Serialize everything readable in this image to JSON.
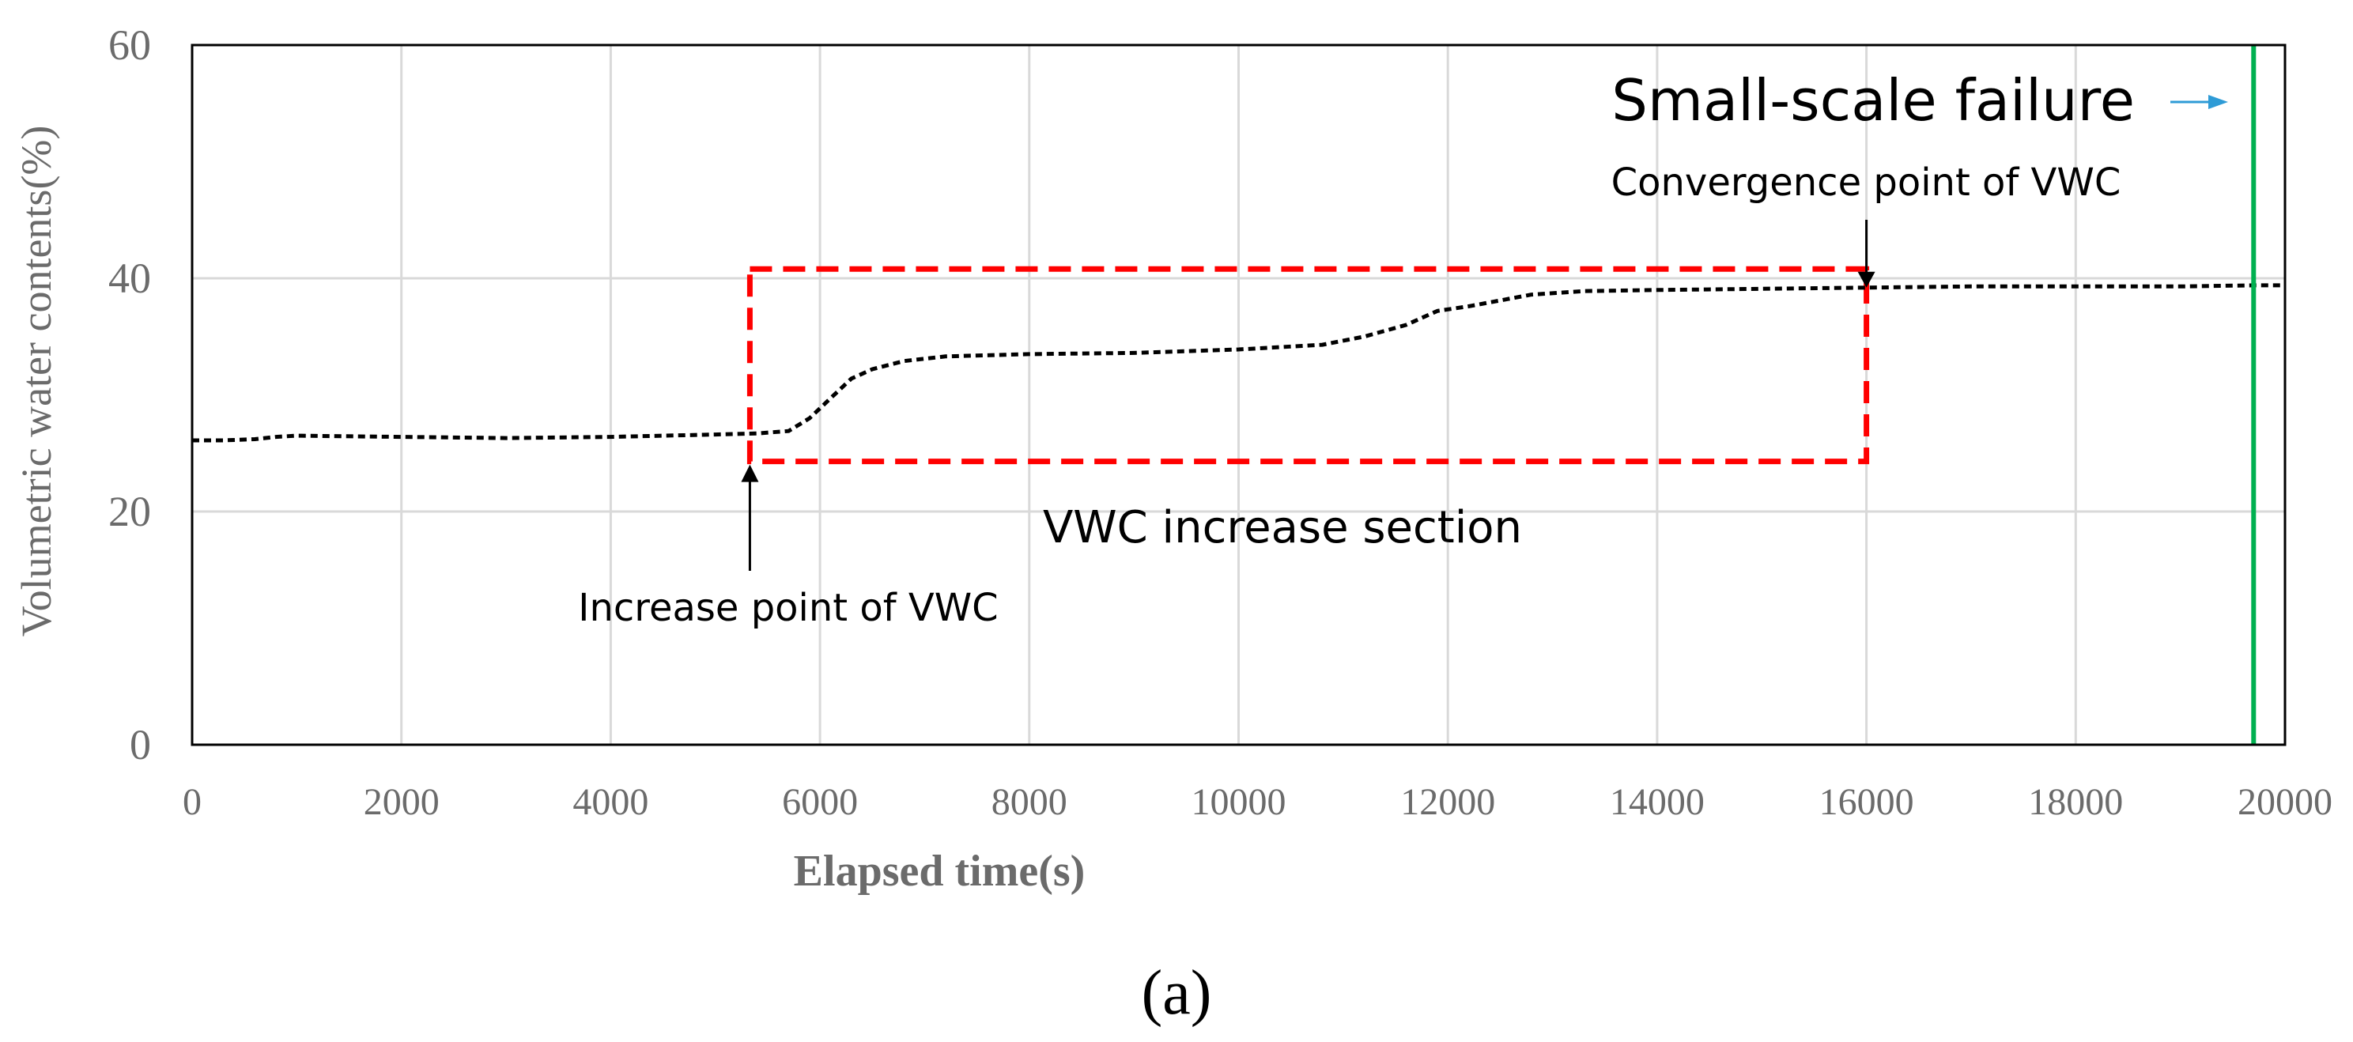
{
  "chart_data": {
    "type": "line",
    "title": "",
    "xlabel": "Elapsed time(s)",
    "ylabel": "Volumetric  water contents(%)",
    "xlim": [
      0,
      20000
    ],
    "ylim": [
      0,
      60
    ],
    "x_ticks": [
      0,
      2000,
      4000,
      6000,
      8000,
      10000,
      12000,
      14000,
      16000,
      18000,
      20000
    ],
    "y_ticks": [
      0,
      20,
      40,
      60
    ],
    "grid": true,
    "series": [
      {
        "name": "VWC",
        "style": "dashed",
        "color": "#000000",
        "points": [
          [
            0,
            26.1
          ],
          [
            300,
            26.1
          ],
          [
            600,
            26.2
          ],
          [
            800,
            26.4
          ],
          [
            1000,
            26.5
          ],
          [
            2000,
            26.4
          ],
          [
            3000,
            26.3
          ],
          [
            4000,
            26.4
          ],
          [
            5000,
            26.6
          ],
          [
            5400,
            26.7
          ],
          [
            5700,
            26.9
          ],
          [
            5900,
            28.0
          ],
          [
            6100,
            29.7
          ],
          [
            6300,
            31.4
          ],
          [
            6500,
            32.2
          ],
          [
            6800,
            32.9
          ],
          [
            7200,
            33.3
          ],
          [
            8000,
            33.5
          ],
          [
            9000,
            33.6
          ],
          [
            10000,
            33.9
          ],
          [
            10800,
            34.3
          ],
          [
            11200,
            35.0
          ],
          [
            11600,
            36.0
          ],
          [
            11900,
            37.2
          ],
          [
            12200,
            37.6
          ],
          [
            12500,
            38.1
          ],
          [
            12800,
            38.6
          ],
          [
            13300,
            38.9
          ],
          [
            14000,
            39.0
          ],
          [
            15000,
            39.1
          ],
          [
            16000,
            39.2
          ],
          [
            17000,
            39.3
          ],
          [
            18000,
            39.3
          ],
          [
            19000,
            39.3
          ],
          [
            19700,
            39.4
          ],
          [
            20000,
            39.4
          ]
        ]
      }
    ],
    "failure_time": 19700,
    "failure_color": "#00b050",
    "box_color": "#ff0000",
    "arrow_color": "#2e9bd6",
    "increase_section": {
      "x_start": 5330,
      "x_end": 16000,
      "y_low": 24.3,
      "y_high": 40.8
    },
    "increase_point": {
      "x": 5330,
      "y": 24.3
    },
    "convergence_point": {
      "x": 16000,
      "y": 39.2
    },
    "annotations": {
      "small_scale_failure": "Small-scale failure",
      "convergence_point": "Convergence point of VWC",
      "increase_point": "Increase point of VWC",
      "increase_section": "VWC increase section"
    }
  },
  "panel_label": "(a)"
}
